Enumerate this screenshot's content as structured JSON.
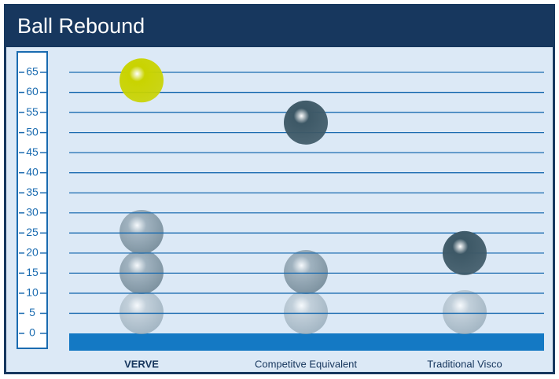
{
  "chart_data": {
    "type": "ball",
    "title": "Ball Rebound",
    "categories": [
      "VERVE",
      "Competitve Equivalent",
      "Traditional Visco"
    ],
    "values": [
      63,
      52.5,
      20
    ],
    "colors": [
      "#c9d300",
      "#3d5866",
      "#3d5866"
    ],
    "ylim": [
      0,
      65
    ],
    "yticks": [
      0,
      5,
      10,
      15,
      20,
      25,
      30,
      35,
      40,
      45,
      50,
      55,
      60,
      65
    ],
    "grid": true
  }
}
